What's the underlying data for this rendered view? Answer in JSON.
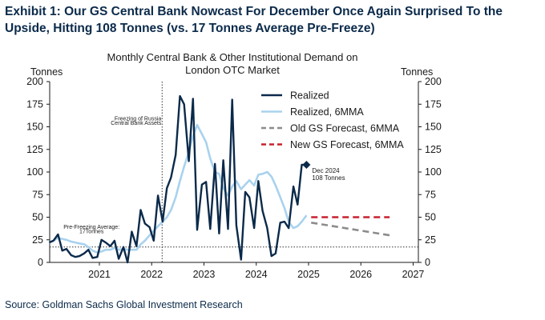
{
  "header": {
    "title": "Exhibit 1: Our GS Central Bank Nowcast For December Once Again Surprised To the Upside, Hitting 108 Tonnes (vs. 17 Tonnes Average Pre-Freeze)"
  },
  "footer": {
    "source": "Source: Goldman Sachs Global Investment Research"
  },
  "colors": {
    "realized": "#0b2a4a",
    "mma": "#a9d2ee",
    "old_forecast": "#8c8c8c",
    "new_forecast": "#c8202e"
  },
  "chart_data": {
    "type": "line",
    "title": "Monthly Central Bank & Other Institutional Demand on London OTC Market",
    "ylabel_left": "Tonnes",
    "ylabel_right": "Tonnes",
    "xlim": [
      2020.05,
      2027.1
    ],
    "ylim": [
      0,
      200
    ],
    "y_ticks": [
      0,
      25,
      50,
      75,
      100,
      125,
      150,
      175,
      200
    ],
    "x_ticks": [
      2021,
      2022,
      2023,
      2024,
      2025,
      2026,
      2027
    ],
    "x_tick_labels": [
      "2021",
      "2022",
      "2023",
      "2024",
      "2025",
      "2026",
      "2027"
    ],
    "reference_line": {
      "y": 17,
      "style": "dotted"
    },
    "event_line": {
      "x": 2022.2,
      "style": "dotted"
    },
    "series": [
      {
        "name": "Realized",
        "style": "solid-dark",
        "x": [
          2020.04,
          2020.12,
          2020.21,
          2020.29,
          2020.37,
          2020.46,
          2020.54,
          2020.62,
          2020.71,
          2020.79,
          2020.87,
          2020.96,
          2021.04,
          2021.12,
          2021.21,
          2021.29,
          2021.37,
          2021.46,
          2021.54,
          2021.62,
          2021.71,
          2021.79,
          2021.87,
          2021.96,
          2022.04,
          2022.12,
          2022.21,
          2022.29,
          2022.37,
          2022.46,
          2022.54,
          2022.62,
          2022.71,
          2022.79,
          2022.87,
          2022.96,
          2023.04,
          2023.12,
          2023.21,
          2023.29,
          2023.37,
          2023.46,
          2023.54,
          2023.62,
          2023.71,
          2023.79,
          2023.87,
          2023.96,
          2024.04,
          2024.12,
          2024.21,
          2024.29,
          2024.37,
          2024.46,
          2024.54,
          2024.62,
          2024.71,
          2024.79,
          2024.87,
          2024.96
        ],
        "values": [
          22,
          24,
          31,
          13,
          15,
          8,
          6,
          7,
          10,
          14,
          5,
          6,
          25,
          22,
          18,
          24,
          4,
          17,
          0,
          34,
          18,
          58,
          43,
          39,
          24,
          74,
          45,
          82,
          94,
          119,
          184,
          175,
          112,
          181,
          36,
          86,
          89,
          37,
          109,
          32,
          113,
          37,
          180,
          41,
          3,
          78,
          72,
          38,
          90,
          57,
          38,
          7,
          10,
          44,
          45,
          38,
          84,
          64,
          108,
          108
        ]
      },
      {
        "name": "Realized, 6MMA",
        "style": "solid-light",
        "x": [
          2020.04,
          2020.12,
          2020.21,
          2020.29,
          2020.37,
          2020.46,
          2020.54,
          2020.62,
          2020.71,
          2020.79,
          2020.87,
          2020.96,
          2021.04,
          2021.12,
          2021.21,
          2021.29,
          2021.37,
          2021.46,
          2021.54,
          2021.62,
          2021.71,
          2021.79,
          2021.87,
          2021.96,
          2022.04,
          2022.12,
          2022.21,
          2022.29,
          2022.37,
          2022.46,
          2022.54,
          2022.62,
          2022.71,
          2022.79,
          2022.87,
          2022.96,
          2023.04,
          2023.12,
          2023.21,
          2023.29,
          2023.37,
          2023.46,
          2023.54,
          2023.62,
          2023.71,
          2023.79,
          2023.87,
          2023.96,
          2024.04,
          2024.12,
          2024.21,
          2024.29,
          2024.37,
          2024.46,
          2024.54,
          2024.62,
          2024.71,
          2024.79,
          2024.87,
          2024.96
        ],
        "values": [
          22,
          24,
          27,
          26,
          25,
          23,
          22,
          21,
          20,
          17,
          13,
          11,
          12,
          14,
          14,
          16,
          14,
          15,
          14,
          14,
          14,
          20,
          24,
          30,
          35,
          40,
          45,
          50,
          58,
          72,
          90,
          106,
          122,
          140,
          152,
          142,
          133,
          115,
          100,
          98,
          82,
          74,
          84,
          90,
          81,
          86,
          91,
          85,
          97,
          98,
          100,
          95,
          85,
          72,
          60,
          45,
          38,
          40,
          45,
          52
        ]
      }
    ],
    "forecasts": [
      {
        "name": "Old GS Forecast, 6MMA",
        "style": "dashed-grey",
        "x": [
          2025.05,
          2026.55
        ],
        "values": [
          44,
          30
        ]
      },
      {
        "name": "New GS Forecast, 6MMA",
        "style": "dashed-red",
        "x": [
          2025.05,
          2026.55
        ],
        "values": [
          50,
          50
        ]
      }
    ],
    "legend": {
      "position": "top-right",
      "entries": [
        "Realized",
        "Realized, 6MMA",
        "Old GS Forecast, 6MMA",
        "New GS Forecast, 6MMA"
      ]
    },
    "annotations": [
      {
        "id": "freeze",
        "lines": [
          "Freezing of Russia",
          "Central Bank Assets"
        ]
      },
      {
        "id": "prefreeze",
        "lines": [
          "Pre-Freezing Average:",
          "17Tonnes"
        ]
      },
      {
        "id": "dec2024",
        "lines": [
          "Dec 2024",
          "108 Tonnes"
        ],
        "x": 2024.96,
        "y": 108
      }
    ]
  }
}
